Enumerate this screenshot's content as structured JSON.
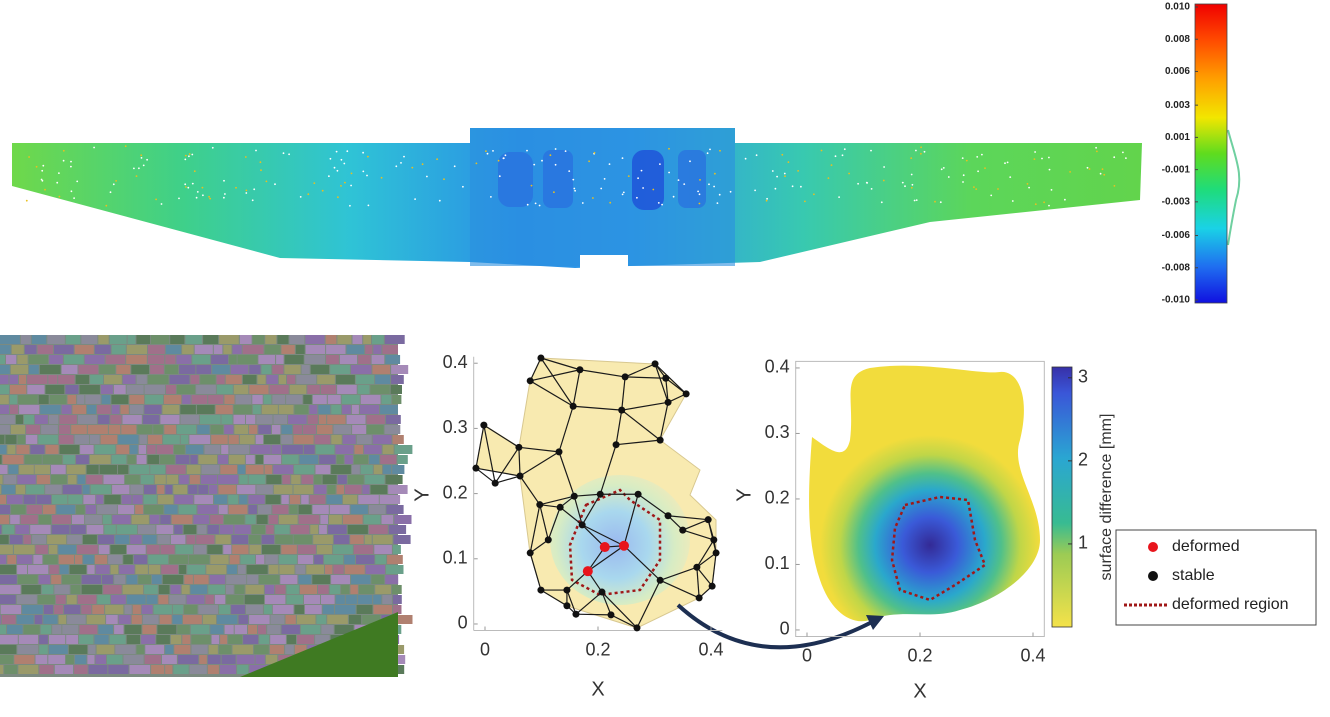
{
  "chart_data": [
    {
      "type": "colorbar",
      "ylim": [
        -0.01,
        0.01
      ],
      "yticks": [
        {
          "value": 0.01,
          "label": "0.010"
        },
        {
          "value": 0.0078,
          "label": "0.008"
        },
        {
          "value": 0.0056,
          "label": "0.006"
        },
        {
          "value": 0.0033,
          "label": "0.003"
        },
        {
          "value": 0.0011,
          "label": "0.001"
        },
        {
          "value": -0.0011,
          "label": "-0.001"
        },
        {
          "value": -0.0033,
          "label": "-0.003"
        },
        {
          "value": -0.0056,
          "label": "-0.006"
        },
        {
          "value": -0.0078,
          "label": "-0.008"
        },
        {
          "value": -0.01,
          "label": "-0.010"
        }
      ]
    },
    {
      "type": "scatter",
      "xlabel": "X",
      "ylabel": "Y",
      "xlim": [
        -0.02,
        0.42
      ],
      "xticks": [
        0,
        0.2,
        0.4
      ],
      "ylim": [
        -0.01,
        0.41
      ],
      "yticks": [
        0,
        0.1,
        0.2,
        0.3,
        0.4
      ],
      "series": [
        {
          "name": "deformed",
          "color": "#e8141c",
          "x": [
            0.182,
            0.212,
            0.246
          ],
          "values": [
            0.081,
            0.118,
            0.12
          ]
        },
        {
          "name": "stable",
          "color": "#111111",
          "x": [
            0.099,
            0.168,
            0.248,
            0.301,
            0.32,
            0.356,
            0.324,
            0.08,
            0.156,
            0.242,
            0.31,
            0.232,
            0.131,
            0.06,
            -0.002,
            -0.016,
            0.018,
            0.062,
            0.158,
            0.204,
            0.271,
            0.324,
            0.35,
            0.395,
            0.405,
            0.409,
            0.375,
            0.402,
            0.379,
            0.31,
            0.269,
            0.223,
            0.207,
            0.145,
            0.145,
            0.099,
            0.08,
            0.097,
            0.112,
            0.172,
            0.161,
            0.133
          ],
          "values": [
            0.408,
            0.39,
            0.379,
            0.399,
            0.377,
            0.353,
            0.34,
            0.373,
            0.334,
            0.328,
            0.282,
            0.275,
            0.264,
            0.271,
            0.305,
            0.239,
            0.216,
            0.227,
            0.196,
            0.199,
            0.199,
            0.166,
            0.144,
            0.16,
            0.129,
            0.109,
            0.087,
            0.058,
            0.04,
            0.067,
            -0.006,
            0.014,
            0.049,
            0.052,
            0.028,
            0.052,
            0.109,
            0.183,
            0.129,
            0.152,
            0.015,
            0.179
          ]
        }
      ],
      "region_label": "deformed region"
    },
    {
      "type": "contour",
      "xlabel": "X",
      "ylabel": "Y",
      "xlim": [
        -0.02,
        0.42
      ],
      "xticks": [
        0,
        0.2,
        0.4
      ],
      "ylim": [
        -0.01,
        0.41
      ],
      "yticks": [
        0,
        0.1,
        0.2,
        0.3,
        0.4
      ],
      "clim": [
        0,
        3.13
      ],
      "cticks": [
        1,
        2,
        3
      ],
      "colorbar_label": "surface difference [mm]"
    }
  ]
}
